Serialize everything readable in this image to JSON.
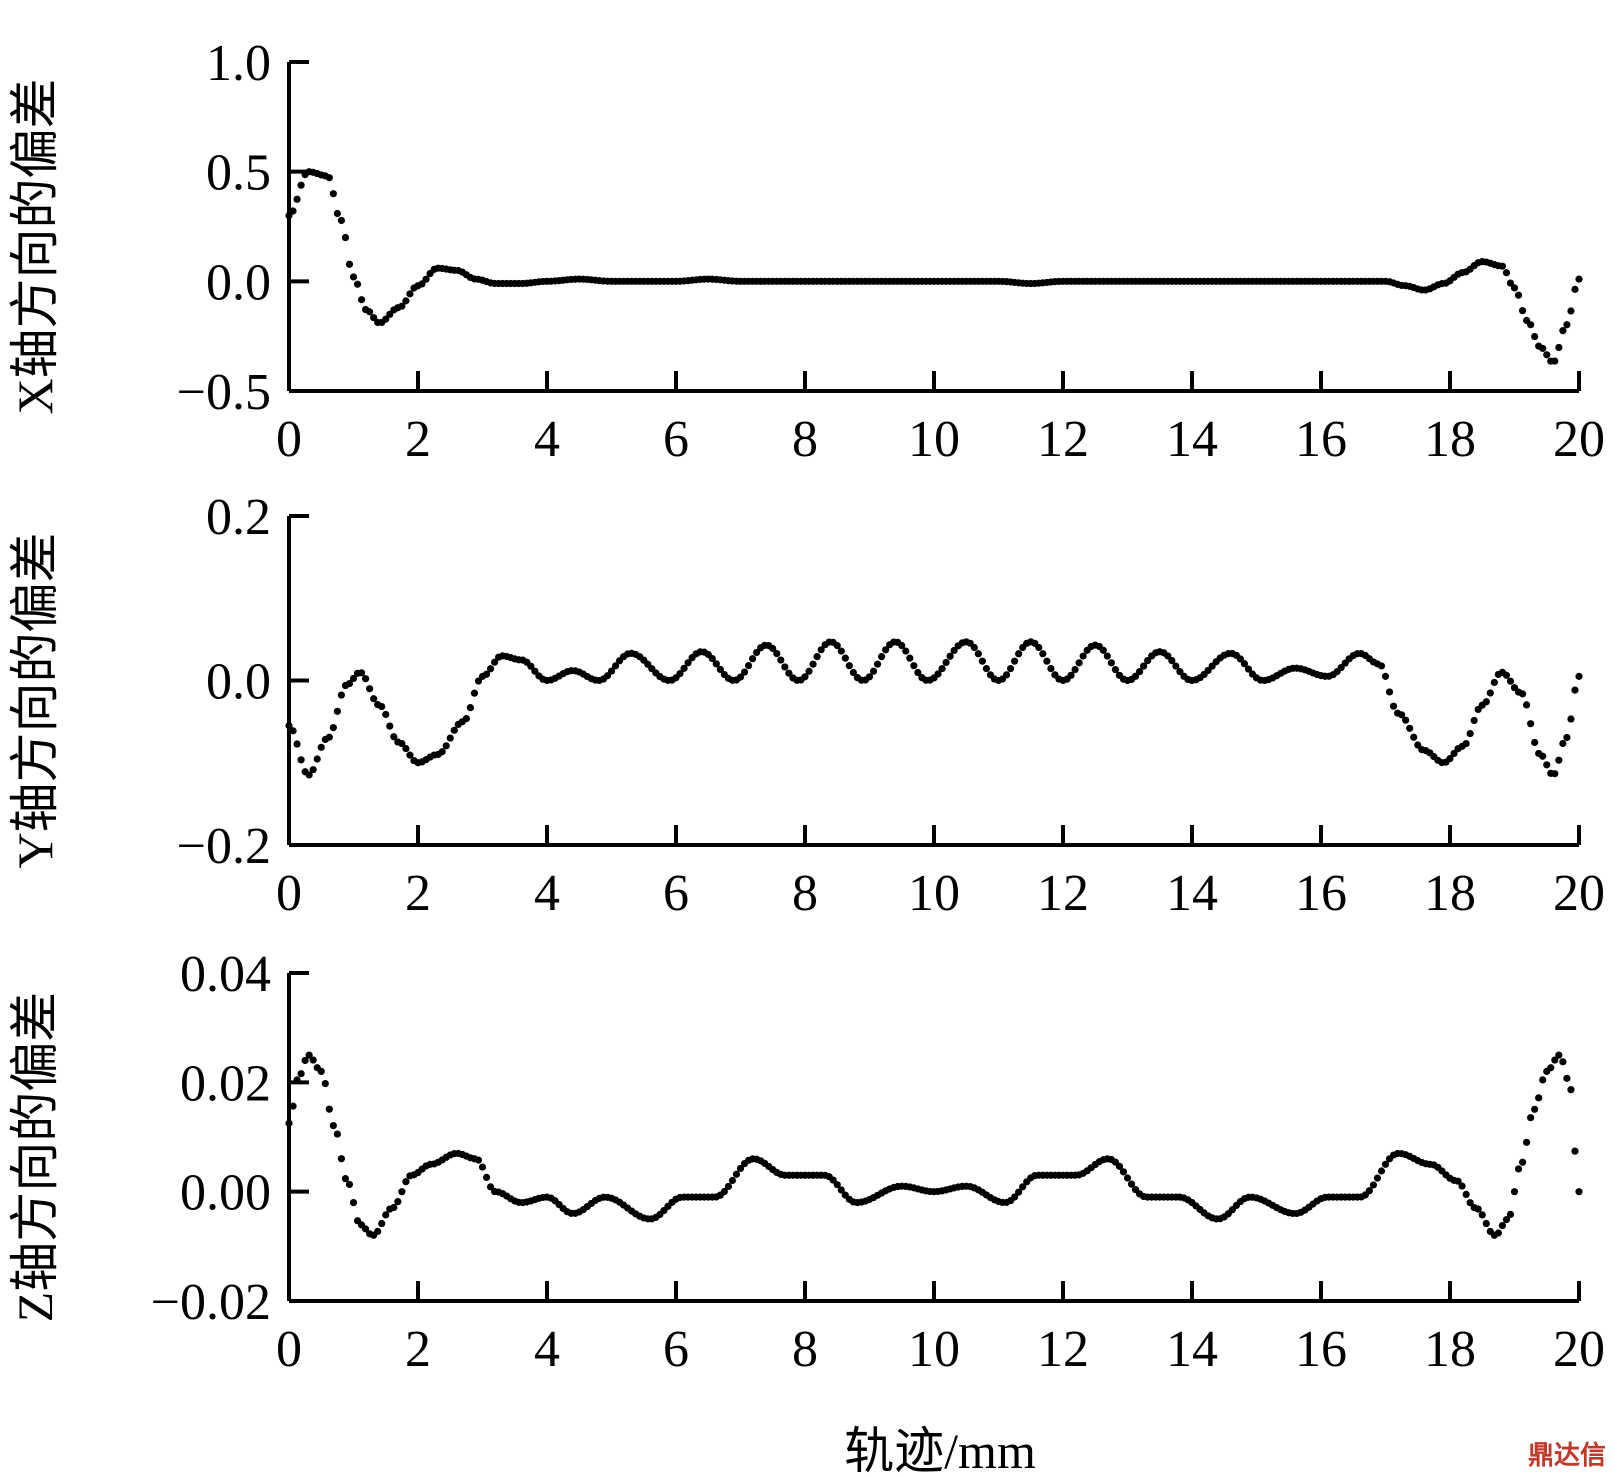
{
  "figure": {
    "xlabel": "轨迹/mm",
    "watermark": "鼎达信"
  },
  "chart_data": [
    {
      "type": "scatter",
      "title": "",
      "xlabel": "",
      "ylabel": "X轴方向的偏差",
      "xlim": [
        0,
        20
      ],
      "ylim": [
        -0.5,
        1.0
      ],
      "x_ticks": [
        0,
        2,
        4,
        6,
        8,
        10,
        12,
        14,
        16,
        18,
        20
      ],
      "x_tick_labels": [
        "0",
        "2",
        "4",
        "6",
        "8",
        "10",
        "12",
        "14",
        "16",
        "18",
        "20"
      ],
      "y_ticks": [
        -0.5,
        0.0,
        0.5,
        1.0
      ],
      "y_tick_labels": [
        "−0.5",
        "0.0",
        "0.5",
        "1.0"
      ],
      "grid": false,
      "series": [
        {
          "color": "#000000",
          "points": [
            [
              0.0,
              0.3
            ],
            [
              0.3,
              0.5
            ],
            [
              0.6,
              0.48
            ],
            [
              0.8,
              0.28
            ],
            [
              1.0,
              0.02
            ],
            [
              1.2,
              -0.13
            ],
            [
              1.4,
              -0.19
            ],
            [
              1.7,
              -0.12
            ],
            [
              2.0,
              -0.02
            ],
            [
              2.3,
              0.06
            ],
            [
              2.6,
              0.05
            ],
            [
              2.9,
              0.01
            ],
            [
              3.2,
              -0.01
            ],
            [
              3.6,
              -0.01
            ],
            [
              4.0,
              0.0
            ],
            [
              4.5,
              0.01
            ],
            [
              5.0,
              0.0
            ],
            [
              6.0,
              0.0
            ],
            [
              6.5,
              0.01
            ],
            [
              7.0,
              0.0
            ],
            [
              8.0,
              0.0
            ],
            [
              9.0,
              0.0
            ],
            [
              10.0,
              0.0
            ],
            [
              11.0,
              0.0
            ],
            [
              11.5,
              -0.01
            ],
            [
              12.0,
              0.0
            ],
            [
              13.0,
              0.0
            ],
            [
              14.0,
              0.0
            ],
            [
              15.0,
              0.0
            ],
            [
              16.0,
              0.0
            ],
            [
              17.0,
              0.0
            ],
            [
              17.3,
              -0.02
            ],
            [
              17.6,
              -0.04
            ],
            [
              17.9,
              -0.01
            ],
            [
              18.2,
              0.04
            ],
            [
              18.5,
              0.09
            ],
            [
              18.8,
              0.07
            ],
            [
              19.0,
              -0.03
            ],
            [
              19.2,
              -0.18
            ],
            [
              19.4,
              -0.3
            ],
            [
              19.6,
              -0.37
            ],
            [
              19.8,
              -0.2
            ],
            [
              20.0,
              0.01
            ]
          ]
        }
      ]
    },
    {
      "type": "scatter",
      "title": "",
      "xlabel": "",
      "ylabel": "Y轴方向的偏差",
      "xlim": [
        0,
        20
      ],
      "ylim": [
        -0.2,
        0.2
      ],
      "x_ticks": [
        0,
        2,
        4,
        6,
        8,
        10,
        12,
        14,
        16,
        18,
        20
      ],
      "x_tick_labels": [
        "0",
        "2",
        "4",
        "6",
        "8",
        "10",
        "12",
        "14",
        "16",
        "18",
        "20"
      ],
      "y_ticks": [
        -0.2,
        0.0,
        0.2
      ],
      "y_tick_labels": [
        "−0.2",
        "0.0",
        "0.2"
      ],
      "grid": false,
      "series": [
        {
          "color": "#000000",
          "points": [
            [
              0.0,
              -0.055
            ],
            [
              0.3,
              -0.115
            ],
            [
              0.6,
              -0.07
            ],
            [
              0.9,
              -0.005
            ],
            [
              1.1,
              0.01
            ],
            [
              1.4,
              -0.03
            ],
            [
              1.7,
              -0.075
            ],
            [
              2.0,
              -0.1
            ],
            [
              2.3,
              -0.09
            ],
            [
              2.7,
              -0.05
            ],
            [
              3.0,
              0.005
            ],
            [
              3.3,
              0.03
            ],
            [
              3.6,
              0.025
            ],
            [
              4.0,
              0.0
            ],
            [
              4.4,
              0.012
            ],
            [
              4.8,
              0.0
            ],
            [
              5.3,
              0.033
            ],
            [
              5.9,
              0.0
            ],
            [
              6.4,
              0.035
            ],
            [
              6.9,
              0.0
            ],
            [
              7.4,
              0.043
            ],
            [
              7.9,
              0.0
            ],
            [
              8.4,
              0.047
            ],
            [
              8.9,
              0.0
            ],
            [
              9.4,
              0.047
            ],
            [
              9.9,
              0.0
            ],
            [
              10.5,
              0.047
            ],
            [
              11.0,
              0.0
            ],
            [
              11.5,
              0.047
            ],
            [
              12.0,
              0.0
            ],
            [
              12.5,
              0.043
            ],
            [
              13.0,
              0.0
            ],
            [
              13.5,
              0.035
            ],
            [
              14.0,
              0.0
            ],
            [
              14.6,
              0.033
            ],
            [
              15.1,
              0.0
            ],
            [
              15.6,
              0.015
            ],
            [
              16.1,
              0.005
            ],
            [
              16.6,
              0.033
            ],
            [
              16.9,
              0.02
            ],
            [
              17.2,
              -0.04
            ],
            [
              17.6,
              -0.085
            ],
            [
              17.9,
              -0.1
            ],
            [
              18.2,
              -0.08
            ],
            [
              18.5,
              -0.03
            ],
            [
              18.8,
              0.01
            ],
            [
              19.1,
              -0.015
            ],
            [
              19.4,
              -0.09
            ],
            [
              19.6,
              -0.115
            ],
            [
              19.8,
              -0.07
            ],
            [
              20.0,
              0.005
            ]
          ]
        }
      ]
    },
    {
      "type": "scatter",
      "title": "",
      "xlabel": "轨迹/mm",
      "ylabel": "Z轴方向的偏差",
      "xlim": [
        0,
        20
      ],
      "ylim": [
        -0.02,
        0.04
      ],
      "x_ticks": [
        0,
        2,
        4,
        6,
        8,
        10,
        12,
        14,
        16,
        18,
        20
      ],
      "x_tick_labels": [
        "0",
        "2",
        "4",
        "6",
        "8",
        "10",
        "12",
        "14",
        "16",
        "18",
        "20"
      ],
      "y_ticks": [
        -0.02,
        0.0,
        0.02,
        0.04
      ],
      "y_tick_labels": [
        "−0.02",
        "0.00",
        "0.02",
        "0.04"
      ],
      "grid": false,
      "series": [
        {
          "color": "#000000",
          "points": [
            [
              0.0,
              0.0125
            ],
            [
              0.15,
              0.021
            ],
            [
              0.3,
              0.025
            ],
            [
              0.5,
              0.022
            ],
            [
              0.7,
              0.012
            ],
            [
              0.9,
              0.002
            ],
            [
              1.1,
              -0.006
            ],
            [
              1.3,
              -0.008
            ],
            [
              1.6,
              -0.003
            ],
            [
              1.9,
              0.003
            ],
            [
              2.2,
              0.005
            ],
            [
              2.6,
              0.007
            ],
            [
              2.9,
              0.006
            ],
            [
              3.2,
              0.0
            ],
            [
              3.6,
              -0.002
            ],
            [
              4.0,
              -0.001
            ],
            [
              4.4,
              -0.004
            ],
            [
              4.9,
              -0.001
            ],
            [
              5.6,
              -0.005
            ],
            [
              6.1,
              -0.001
            ],
            [
              6.6,
              -0.001
            ],
            [
              7.2,
              0.006
            ],
            [
              7.7,
              0.003
            ],
            [
              8.3,
              0.003
            ],
            [
              8.8,
              -0.002
            ],
            [
              9.5,
              0.001
            ],
            [
              10.0,
              0.0
            ],
            [
              10.5,
              0.001
            ],
            [
              11.1,
              -0.002
            ],
            [
              11.6,
              0.003
            ],
            [
              12.2,
              0.003
            ],
            [
              12.7,
              0.006
            ],
            [
              13.3,
              -0.001
            ],
            [
              13.8,
              -0.001
            ],
            [
              14.4,
              -0.005
            ],
            [
              14.9,
              -0.001
            ],
            [
              15.6,
              -0.004
            ],
            [
              16.1,
              -0.001
            ],
            [
              16.6,
              -0.001
            ],
            [
              17.2,
              0.007
            ],
            [
              17.7,
              0.005
            ],
            [
              18.1,
              0.002
            ],
            [
              18.4,
              -0.003
            ],
            [
              18.7,
              -0.008
            ],
            [
              18.9,
              -0.005
            ],
            [
              19.1,
              0.005
            ],
            [
              19.3,
              0.015
            ],
            [
              19.5,
              0.022
            ],
            [
              19.7,
              0.025
            ],
            [
              19.85,
              0.02
            ],
            [
              20.0,
              0.0
            ]
          ]
        }
      ]
    }
  ]
}
